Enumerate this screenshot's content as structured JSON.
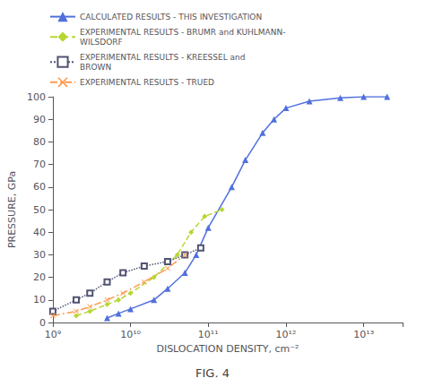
{
  "chart_data": {
    "type": "line",
    "title": "FIG. 4",
    "xlabel": "DISLOCATION DENSITY, cm⁻²",
    "ylabel": "PRESSURE, GPa",
    "log": "x",
    "xlim": [
      1000000000,
      31622776601683.79
    ],
    "ylim": [
      0,
      100
    ],
    "xticks": [
      {
        "value": 1000000000,
        "label": "10⁹"
      },
      {
        "value": 10000000000,
        "label": "10¹⁰"
      },
      {
        "value": 100000000000,
        "label": "10¹¹"
      },
      {
        "value": 1000000000000,
        "label": "10¹²"
      },
      {
        "value": 10000000000000,
        "label": "10¹³"
      }
    ],
    "yticks": [
      0,
      10,
      20,
      30,
      40,
      50,
      60,
      70,
      80,
      90,
      100
    ],
    "grid": false,
    "legend": "upper left",
    "series": [
      {
        "name": "CALCULATED RESULTS - THIS INVESTIGATION",
        "marker": "triangle",
        "line_style": "solid",
        "x": [
          5000000000.0,
          7000000000.0,
          10000000000.0,
          20000000000.0,
          30000000000.0,
          50000000000.0,
          70000000000.0,
          100000000000.0,
          200000000000.0,
          300000000000.0,
          500000000000.0,
          700000000000.0,
          1000000000000.0,
          2000000000000.0,
          5000000000000.0,
          10000000000000.0,
          20000000000000.0
        ],
        "values": [
          2,
          4,
          6,
          10,
          15,
          22,
          30,
          42,
          60,
          72,
          84,
          90,
          95,
          98,
          99.5,
          100,
          100
        ]
      },
      {
        "name": "EXPERIMENTAL RESULTS - BRUMR and KUHLMANN-\nWILSDORF",
        "marker": "diamond",
        "line_style": "dashed",
        "x": [
          2000000000.0,
          3000000000.0,
          5000000000.0,
          7000000000.0,
          10000000000.0,
          20000000000.0,
          40000000000.0,
          60000000000.0,
          90000000000.0,
          150000000000.0
        ],
        "values": [
          3,
          5,
          8,
          10,
          13,
          20,
          30,
          40,
          47,
          50
        ]
      },
      {
        "name": "EXPERIMENTAL RESULTS - KREESSEL and\nBROWN",
        "marker": "open_square",
        "line_style": "dotted",
        "x": [
          1000000000.0,
          2000000000.0,
          3000000000.0,
          5000000000.0,
          8000000000.0,
          15000000000.0,
          30000000000.0,
          50000000000.0,
          80000000000.0
        ],
        "values": [
          5,
          10,
          13,
          18,
          22,
          25,
          27,
          30,
          33
        ]
      },
      {
        "name": "EXPERIMENTAL RESULTS - TRUED",
        "marker": "x",
        "line_style": "dashdot",
        "x": [
          1000000000.0,
          2000000000.0,
          3000000000.0,
          5000000000.0,
          8000000000.0,
          15000000000.0,
          30000000000.0,
          50000000000.0
        ],
        "values": [
          3,
          5,
          7,
          10,
          13,
          18,
          24,
          30
        ]
      }
    ]
  }
}
